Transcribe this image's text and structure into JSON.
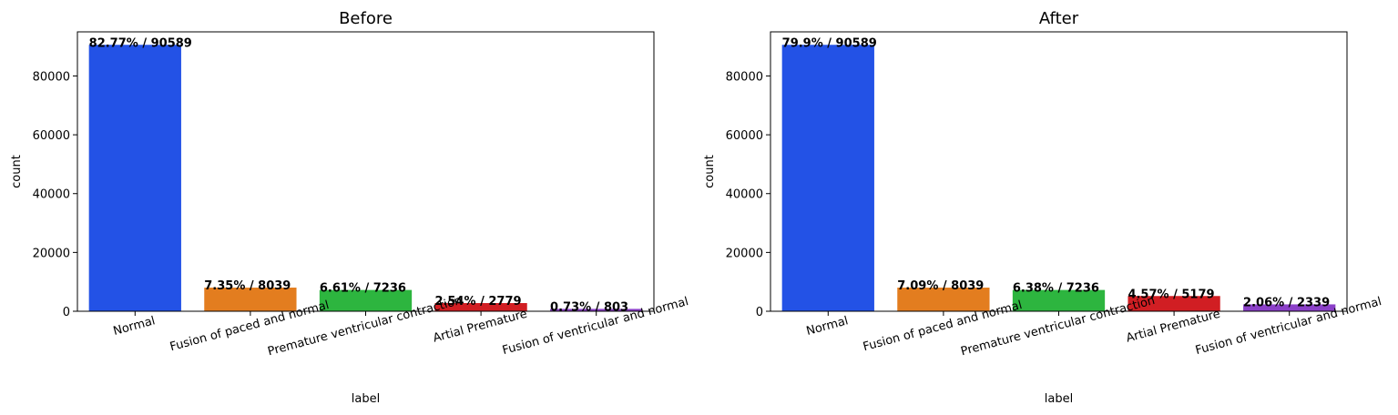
{
  "chart_data": [
    {
      "type": "bar",
      "title": "Before",
      "xlabel": "label",
      "ylabel": "count",
      "categories": [
        "Normal",
        "Fusion of paced and normal",
        "Premature ventricular contraction",
        "Artial Premature",
        "Fusion of ventricular and normal"
      ],
      "values": [
        90589,
        8039,
        7236,
        2779,
        803
      ],
      "bar_labels": [
        "82.77% / 90589",
        "7.35% / 8039",
        "6.61% / 7236",
        "2.54% / 2779",
        "0.73% / 803"
      ],
      "colors": [
        "#2352e6",
        "#e37d1f",
        "#2db53f",
        "#d11e23",
        "#8b40c8"
      ],
      "ylim": [
        0,
        95000
      ],
      "yticks": [
        0,
        20000,
        40000,
        60000,
        80000
      ],
      "grid": false,
      "x_tick_rotation": "15 degrees"
    },
    {
      "type": "bar",
      "title": "After",
      "xlabel": "label",
      "ylabel": "count",
      "categories": [
        "Normal",
        "Fusion of paced and normal",
        "Premature ventricular contraction",
        "Artial Premature",
        "Fusion of ventricular and normal"
      ],
      "values": [
        90589,
        8039,
        7236,
        5179,
        2339
      ],
      "bar_labels": [
        "79.9% / 90589",
        "7.09% / 8039",
        "6.38% / 7236",
        "4.57% / 5179",
        "2.06% / 2339"
      ],
      "colors": [
        "#2352e6",
        "#e37d1f",
        "#2db53f",
        "#d11e23",
        "#8b40c8"
      ],
      "ylim": [
        0,
        95000
      ],
      "yticks": [
        0,
        20000,
        40000,
        60000,
        80000
      ],
      "grid": false,
      "x_tick_rotation": "15 degrees"
    }
  ]
}
